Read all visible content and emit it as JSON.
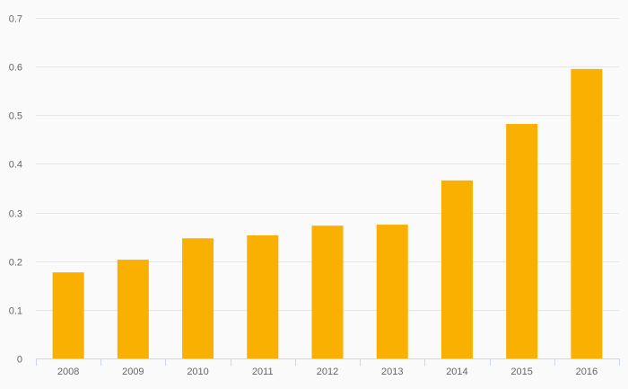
{
  "chart_data": {
    "type": "bar",
    "categories": [
      "2008",
      "2009",
      "2010",
      "2011",
      "2012",
      "2013",
      "2014",
      "2015",
      "2016"
    ],
    "values": [
      0.177,
      0.203,
      0.247,
      0.253,
      0.273,
      0.275,
      0.366,
      0.482,
      0.595
    ],
    "title": "",
    "xlabel": "",
    "ylabel": "",
    "ylim": [
      0,
      0.7
    ],
    "yticks": [
      "0",
      "0.1",
      "0.2",
      "0.3",
      "0.4",
      "0.5",
      "0.6",
      "0.7"
    ],
    "grid": true,
    "bar_color": "#f9b000",
    "background_color": "#fafafa"
  }
}
